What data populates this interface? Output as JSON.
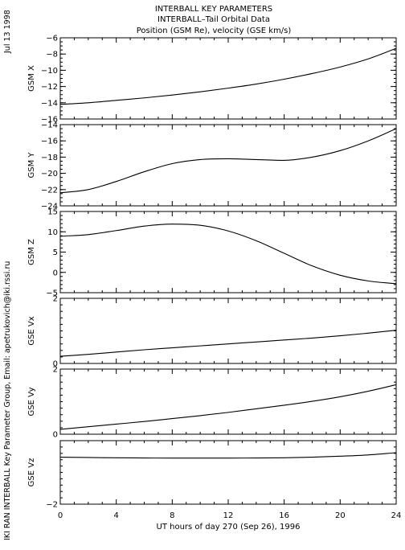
{
  "title_lines": [
    "INTERBALL KEY PARAMETERS",
    "INTERBALL–Tail Orbital Data",
    "Position (GSM Re), velocity (GSE km/s)"
  ],
  "side_date": "Jul 13 1998",
  "side_credit": "IKI RAN INTERBALL Key Parameter Group, Email: apetrukovich@iki.rssi.ru",
  "colors": {
    "line": "#000000",
    "background": "#ffffff"
  },
  "chart_data": {
    "type": "line",
    "xlabel": "UT hours of day 270 (Sep 26), 1996",
    "xlim": [
      0,
      24
    ],
    "xticks": [
      0,
      4,
      8,
      12,
      16,
      20,
      24
    ],
    "x": [
      0,
      2,
      4,
      6,
      8,
      10,
      12,
      14,
      16,
      18,
      20,
      22,
      24
    ],
    "panels": [
      {
        "ylabel": "GSM X",
        "ylim": [
          -16,
          -6
        ],
        "yticks": [
          -16,
          -14,
          -12,
          -10,
          -8,
          -6
        ],
        "values": [
          -14.2,
          -14.0,
          -13.7,
          -13.4,
          -13.05,
          -12.65,
          -12.2,
          -11.7,
          -11.1,
          -10.4,
          -9.6,
          -8.6,
          -7.3
        ]
      },
      {
        "ylabel": "GSM Y",
        "ylim": [
          -24,
          -14
        ],
        "yticks": [
          -24,
          -22,
          -20,
          -18,
          -16,
          -14
        ],
        "values": [
          -22.4,
          -22.0,
          -21.0,
          -19.8,
          -18.8,
          -18.3,
          -18.2,
          -18.3,
          -18.4,
          -18.0,
          -17.2,
          -16.0,
          -14.5
        ]
      },
      {
        "ylabel": "GSM Z",
        "ylim": [
          -5,
          15
        ],
        "yticks": [
          -5,
          0,
          5,
          10,
          15
        ],
        "values": [
          8.9,
          9.3,
          10.3,
          11.4,
          11.9,
          11.6,
          10.2,
          7.8,
          4.7,
          1.6,
          -0.7,
          -2.1,
          -2.8
        ]
      },
      {
        "ylabel": "GSE Vx",
        "ylim": [
          0,
          2
        ],
        "yticks": [
          0,
          2
        ],
        "values": [
          0.22,
          0.28,
          0.35,
          0.42,
          0.48,
          0.54,
          0.6,
          0.66,
          0.72,
          0.78,
          0.85,
          0.93,
          1.02
        ]
      },
      {
        "ylabel": "GSE Vy",
        "ylim": [
          0,
          2
        ],
        "yticks": [
          0,
          2
        ],
        "values": [
          0.15,
          0.23,
          0.31,
          0.39,
          0.48,
          0.57,
          0.67,
          0.78,
          0.89,
          1.01,
          1.15,
          1.32,
          1.52
        ]
      },
      {
        "ylabel": "GSE Vz",
        "ylim": [
          -2,
          0
        ],
        "yticks": [
          -2
        ],
        "values": [
          -0.52,
          -0.53,
          -0.54,
          -0.545,
          -0.55,
          -0.55,
          -0.55,
          -0.545,
          -0.54,
          -0.52,
          -0.49,
          -0.45,
          -0.38
        ]
      }
    ]
  }
}
